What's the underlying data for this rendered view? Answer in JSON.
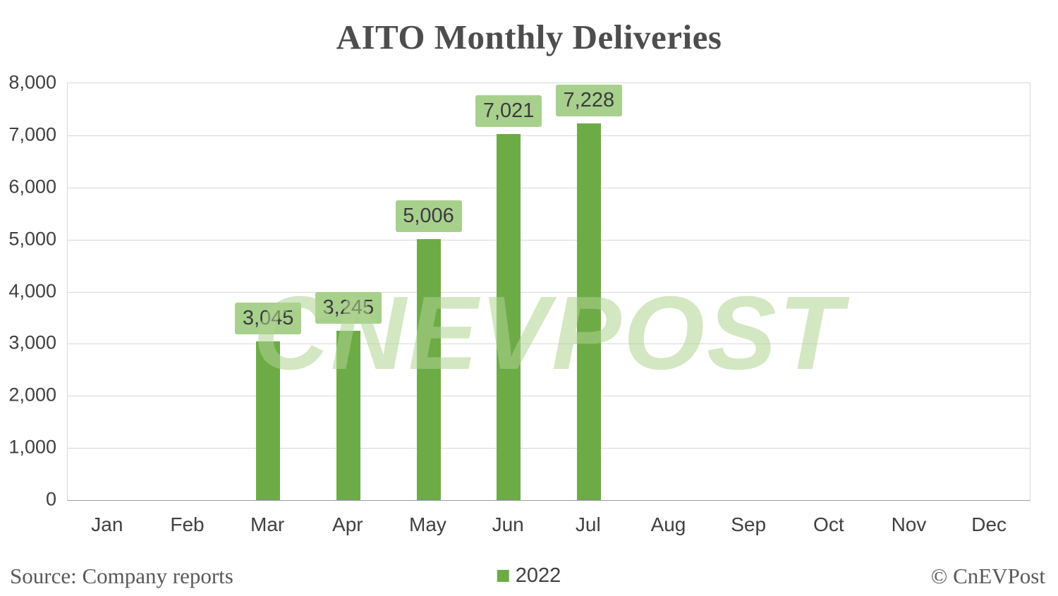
{
  "chart_data": {
    "type": "bar",
    "title": "AITO Monthly Deliveries",
    "categories": [
      "Jan",
      "Feb",
      "Mar",
      "Apr",
      "May",
      "Jun",
      "Jul",
      "Aug",
      "Sep",
      "Oct",
      "Nov",
      "Dec"
    ],
    "series": [
      {
        "name": "2022",
        "values": [
          null,
          null,
          3045,
          3245,
          5006,
          7021,
          7228,
          null,
          null,
          null,
          null,
          null
        ]
      }
    ],
    "data_labels": [
      "",
      "",
      "3,045",
      "3,245",
      "5,006",
      "7,021",
      "7,228",
      "",
      "",
      "",
      "",
      ""
    ],
    "xlabel": "",
    "ylabel": "",
    "ylim": [
      0,
      8000
    ],
    "ytick_interval": 1000,
    "ytick_labels": [
      "0",
      "1,000",
      "2,000",
      "3,000",
      "4,000",
      "5,000",
      "6,000",
      "7,000",
      "8,000"
    ],
    "grid": "horizontal",
    "legend_position": "bottom-center",
    "bar_color": "#6dab47",
    "label_box_color": "#a8d08d",
    "gridline_color": "#d9d9d9"
  },
  "watermark": "CNEVPOST",
  "footer": {
    "source": "Source: Company reports",
    "legend_label": "2022",
    "copyright": "© CnEVPost"
  }
}
